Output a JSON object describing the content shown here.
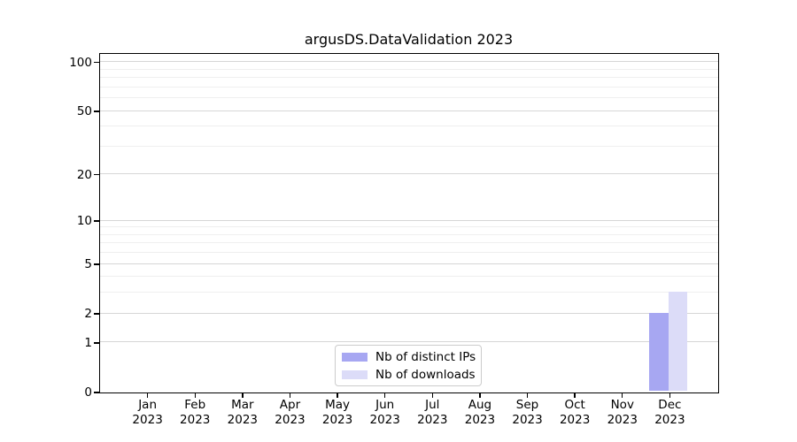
{
  "title": "argusDS.DataValidation 2023",
  "colors": {
    "background": "#ffffff",
    "spine": "#000000",
    "text": "#000000",
    "grid_major": "#d6d6d6",
    "grid_minor": "#efefef",
    "legend_border": "#cccccc",
    "series_distinct_ips": "#a7a7f2",
    "series_downloads": "#dcdcf8"
  },
  "chart_data": {
    "type": "bar",
    "title": "argusDS.DataValidation 2023",
    "xlabel": "",
    "ylabel": "",
    "categories": [
      "Jan 2023",
      "Feb 2023",
      "Mar 2023",
      "Apr 2023",
      "May 2023",
      "Jun 2023",
      "Jul 2023",
      "Aug 2023",
      "Sep 2023",
      "Oct 2023",
      "Nov 2023",
      "Dec 2023"
    ],
    "series": [
      {
        "name": "Nb of distinct IPs",
        "color": "#a7a7f2",
        "values": [
          0,
          0,
          0,
          0,
          0,
          0,
          0,
          0,
          0,
          0,
          0,
          2
        ]
      },
      {
        "name": "Nb of downloads",
        "color": "#dcdcf8",
        "values": [
          0,
          0,
          0,
          0,
          0,
          0,
          0,
          0,
          0,
          0,
          0,
          3
        ]
      }
    ],
    "yscale": "log1p",
    "ylim": [
      0,
      113
    ],
    "y_major_ticks": [
      0,
      1,
      2,
      5,
      10,
      20,
      50,
      100
    ],
    "y_minor_ticks": [
      3,
      4,
      6,
      7,
      8,
      9,
      30,
      40,
      60,
      70,
      80,
      90
    ],
    "grid": "horizontal",
    "legend_position": "lower center"
  },
  "legend": {
    "items": [
      {
        "label": "Nb of distinct IPs"
      },
      {
        "label": "Nb of downloads"
      }
    ]
  }
}
